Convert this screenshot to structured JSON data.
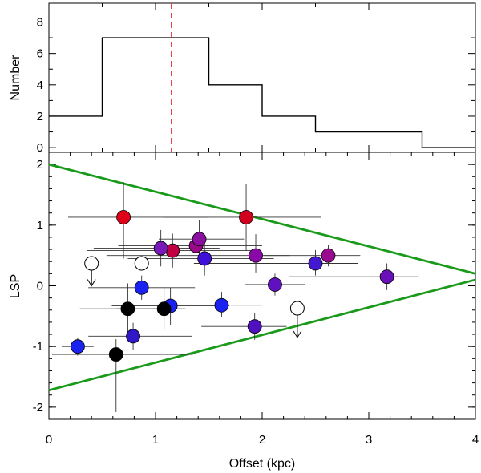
{
  "chart_data": [
    {
      "type": "histogram",
      "ylabel": "Number",
      "xlim": [
        0,
        4
      ],
      "ylim": [
        -0.3,
        9.2
      ],
      "yticks": [
        "0",
        "2",
        "4",
        "6",
        "8"
      ],
      "bins": [
        {
          "x0": 0.0,
          "x1": 0.5,
          "count": 2
        },
        {
          "x0": 0.5,
          "x1": 1.5,
          "count": 7
        },
        {
          "x0": 1.5,
          "x1": 2.0,
          "count": 4
        },
        {
          "x0": 2.0,
          "x1": 2.5,
          "count": 2
        },
        {
          "x0": 2.5,
          "x1": 3.5,
          "count": 1
        },
        {
          "x0": 3.5,
          "x1": 4.0,
          "count": 0
        }
      ],
      "median_line": {
        "x": 1.15,
        "color": "#e8252d",
        "style": "dashed"
      },
      "line_color": "#000000"
    },
    {
      "type": "scatter",
      "xlabel": "Offset (kpc)",
      "ylabel": "LSP",
      "xlim": [
        0,
        4
      ],
      "ylim": [
        -2.2,
        2.2
      ],
      "xticks": [
        "0",
        "1",
        "2",
        "3",
        "4"
      ],
      "yticks": [
        "-2",
        "-1",
        "0",
        "1",
        "2"
      ],
      "envelope": {
        "color": "#1a9a1a",
        "upper": [
          [
            0,
            2.0
          ],
          [
            4,
            0.2
          ]
        ],
        "lower": [
          [
            0,
            -1.72
          ],
          [
            4,
            0.1
          ]
        ]
      },
      "points": [
        {
          "x": 0.7,
          "y": 1.13,
          "xerr": [
            0.52,
            0.8
          ],
          "yerr": [
            0.68,
            0.58
          ],
          "color": "#e0001a"
        },
        {
          "x": 1.85,
          "y": 1.13,
          "xerr": [
            0.78,
            0.7
          ],
          "yerr": [
            0.55,
            0.55
          ],
          "color": "#d0001e"
        },
        {
          "x": 1.16,
          "y": 0.58,
          "xerr": [
            0.8,
            0.76
          ],
          "yerr": [
            0.28,
            0.28
          ],
          "color": "#c00040"
        },
        {
          "x": 1.05,
          "y": 0.62,
          "xerr": [
            0.63,
            0.55
          ],
          "yerr": [
            0.3,
            0.3
          ],
          "color": "#7818b8"
        },
        {
          "x": 1.38,
          "y": 0.66,
          "xerr": [
            0.73,
            0.62
          ],
          "yerr": [
            0.28,
            0.28
          ],
          "color": "#9a0a88"
        },
        {
          "x": 1.41,
          "y": 0.77,
          "xerr": [
            0.38,
            0.42
          ],
          "yerr": [
            0.3,
            0.32
          ],
          "color": "#8a10a0"
        },
        {
          "x": 1.46,
          "y": 0.45,
          "xerr": [
            0.72,
            0.65
          ],
          "yerr": [
            0.28,
            0.28
          ],
          "color": "#4010d8"
        },
        {
          "x": 1.94,
          "y": 0.5,
          "xerr": [
            1.4,
            0.32
          ],
          "yerr": [
            0.28,
            0.35
          ],
          "color": "#8a08a8"
        },
        {
          "x": 2.62,
          "y": 0.5,
          "xerr": [
            0.6,
            0.3
          ],
          "yerr": [
            0.18,
            0.18
          ],
          "color": "#9a0a90"
        },
        {
          "x": 2.5,
          "y": 0.37,
          "xerr": [
            1.14,
            0.4
          ],
          "yerr": [
            0.2,
            0.22
          ],
          "color": "#4418d0"
        },
        {
          "x": 3.17,
          "y": 0.15,
          "xerr": [
            0.92,
            0.3
          ],
          "yerr": [
            0.22,
            0.22
          ],
          "color": "#6a10b8"
        },
        {
          "x": 2.12,
          "y": 0.02,
          "xerr": [
            0.28,
            0.28
          ],
          "yerr": [
            0.18,
            0.18
          ],
          "color": "#6010c0"
        },
        {
          "x": 0.87,
          "y": -0.03,
          "xerr": [
            0.5,
            0.5
          ],
          "yerr": [
            0.2,
            0.2
          ],
          "color": "#1a22f0"
        },
        {
          "x": 1.62,
          "y": -0.32,
          "xerr": [
            0.4,
            0.38
          ],
          "yerr": [
            0.2,
            0.22
          ],
          "color": "#1a22f0"
        },
        {
          "x": 1.14,
          "y": -0.33,
          "xerr": [
            0.55,
            0.55
          ],
          "yerr": [
            0.32,
            0.3
          ],
          "color": "#1a22f0"
        },
        {
          "x": 0.74,
          "y": -0.38,
          "xerr": [
            0.45,
            0.4
          ],
          "yerr": [
            0.4,
            0.42
          ],
          "color": "#000000"
        },
        {
          "x": 1.08,
          "y": -0.38,
          "xerr": [
            0.45,
            0.2
          ],
          "yerr": [
            0.35,
            0.35
          ],
          "color": "#000000"
        },
        {
          "x": 0.79,
          "y": -0.83,
          "xerr": [
            0.42,
            0.55
          ],
          "yerr": [
            0.22,
            0.22
          ],
          "color": "#3018c8"
        },
        {
          "x": 1.93,
          "y": -0.67,
          "xerr": [
            0.5,
            0.3
          ],
          "yerr": [
            0.22,
            0.22
          ],
          "color": "#5010c0"
        },
        {
          "x": 0.27,
          "y": -1.0,
          "xerr": [
            0.15,
            0.15
          ],
          "yerr": [
            0.15,
            0.15
          ],
          "color": "#1a22f0"
        },
        {
          "x": 0.63,
          "y": -1.13,
          "xerr": [
            0.6,
            0.72
          ],
          "yerr": [
            0.95,
            0.25
          ],
          "color": "#000000"
        }
      ],
      "upper_limits": [
        {
          "x": 0.4,
          "y": 0.37,
          "arrow_to": 0.0
        },
        {
          "x": 0.87,
          "y": 0.37,
          "arrow_to": null
        },
        {
          "x": 2.33,
          "y": -0.37,
          "arrow_to": -0.85
        }
      ]
    }
  ]
}
